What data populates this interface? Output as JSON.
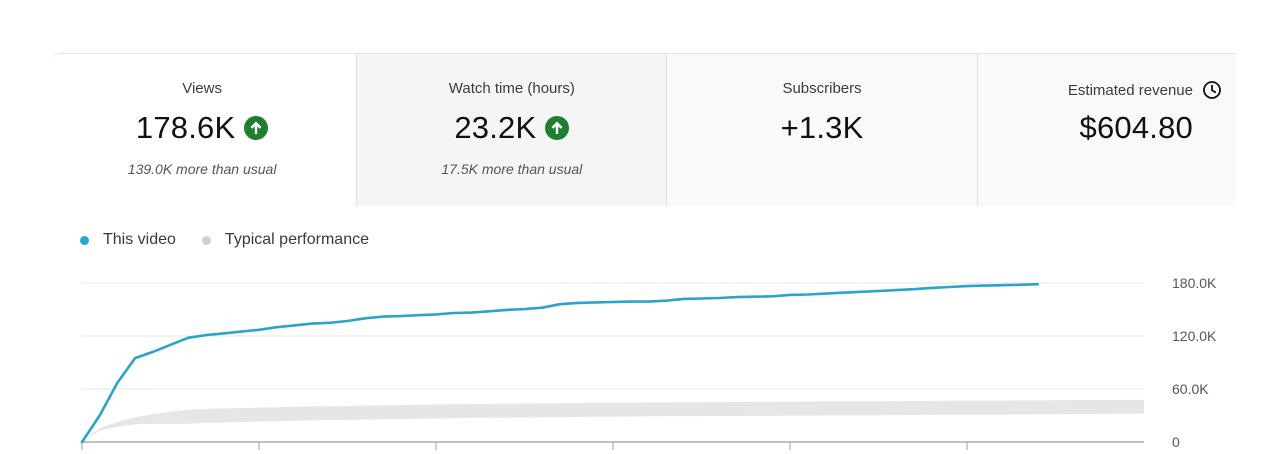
{
  "cards": [
    {
      "label": "Views",
      "value": "178.6K",
      "sub": "139.0K more than usual",
      "trend": "up",
      "icon": "up-arrow-circle-icon"
    },
    {
      "label": "Watch time (hours)",
      "value": "23.2K",
      "sub": "17.5K more than usual",
      "trend": "up",
      "icon": "up-arrow-circle-icon"
    },
    {
      "label": "Subscribers",
      "value": "+1.3K",
      "sub": ""
    },
    {
      "label": "Estimated revenue",
      "value": "$604.80",
      "sub": "",
      "icon": "clock-icon"
    }
  ],
  "colors": {
    "this_video": "#2aa5c8",
    "typical": "#e6e6e6",
    "trend_up": "#1e7e34"
  },
  "chart_data": {
    "type": "line",
    "legend": {
      "placement": "top-left",
      "entries": [
        "This video",
        "Typical performance"
      ]
    },
    "y_ticks": [
      "180.0K",
      "120.0K",
      "60.0K",
      "0"
    ],
    "ylim": [
      0,
      180000
    ],
    "x": [
      0,
      0.5,
      1,
      1.5,
      2,
      2.5,
      3,
      3.5,
      4,
      4.5,
      5,
      5.5,
      6,
      6.5,
      7,
      7.5,
      8,
      8.5,
      9,
      9.5,
      10,
      10.5,
      11,
      11.5,
      12,
      12.5,
      13,
      13.5,
      14,
      14.5,
      15,
      15.5,
      16,
      16.5,
      17,
      17.5,
      18,
      18.5,
      19,
      19.5,
      20,
      20.5,
      21,
      21.5,
      22,
      22.5,
      23,
      23.5,
      24,
      24.5,
      25,
      25.5,
      26,
      26.5,
      27
    ],
    "xlim": [
      0,
      30
    ],
    "series": [
      {
        "name": "This video",
        "values": [
          0,
          30000,
          67000,
          95000,
          102000,
          110000,
          118000,
          121000,
          123000,
          125000,
          127000,
          130000,
          132000,
          134000,
          135000,
          137000,
          140000,
          142000,
          142500,
          143500,
          144500,
          146000,
          146500,
          148000,
          149500,
          150500,
          152000,
          156000,
          157500,
          158000,
          158500,
          159000,
          159000,
          160000,
          162000,
          162500,
          163000,
          164000,
          164500,
          165000,
          166500,
          167000,
          168000,
          169000,
          170000,
          171000,
          172000,
          173000,
          174500,
          175500,
          176500,
          177000,
          177500,
          178000,
          178600
        ]
      },
      {
        "name": "Typical performance",
        "values": [
          0,
          14000,
          20000,
          24000,
          26000,
          27500,
          28500,
          29500,
          30000,
          30500,
          31000,
          31500,
          32000,
          32500,
          32800,
          33000,
          33300,
          33600,
          33900,
          34200,
          34500,
          34700,
          35000,
          35200,
          35400,
          35600,
          35800,
          36000,
          36200,
          36400,
          36600,
          36800,
          37000,
          37100,
          37200,
          37300,
          37400,
          37500,
          37600,
          37700,
          37800,
          37900,
          38000,
          38100,
          38200,
          38300,
          38400,
          38500,
          38600,
          38700,
          38800,
          38900,
          39000,
          39100,
          39200
        ]
      }
    ]
  }
}
